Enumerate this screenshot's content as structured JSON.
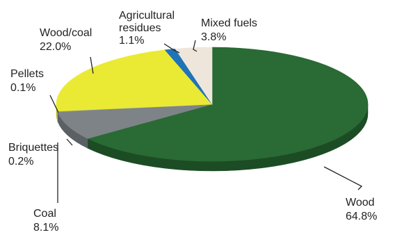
{
  "chart_data": {
    "type": "pie",
    "style": "3d",
    "slices": [
      {
        "name": "Wood",
        "value": 64.8,
        "value_label": "64.8%",
        "color": "#2a6a34",
        "side_color": "#1c4c24"
      },
      {
        "name": "Coal",
        "value": 8.1,
        "value_label": "8.1%",
        "color": "#7e8388",
        "side_color": "#5b6065"
      },
      {
        "name": "Briquettes",
        "value": 0.2,
        "value_label": "0.2%",
        "color": "#8d9196",
        "side_color": "#676b70"
      },
      {
        "name": "Pellets",
        "value": 0.1,
        "value_label": "0.1%",
        "color": "#d9d93a",
        "side_color": "#aaa92a"
      },
      {
        "name": "Wood/coal",
        "value": 22.0,
        "value_label": "22.0%",
        "color": "#eaea34",
        "side_color": "#b9b825"
      },
      {
        "name": "Agricultural residues",
        "value": 1.1,
        "value_label": "1.1%",
        "color": "#1f73b8",
        "side_color": "#175788"
      },
      {
        "name": "Mixed fuels",
        "value": 3.8,
        "value_label": "3.8%",
        "color": "#eee6db",
        "side_color": "#cfc5b8"
      }
    ],
    "labels": [
      {
        "lines": [
          "Wood",
          "64.8%"
        ]
      },
      {
        "lines": [
          "Coal",
          "8.1%"
        ]
      },
      {
        "lines": [
          "Briquettes",
          "0.2%"
        ]
      },
      {
        "lines": [
          "Pellets",
          "0.1%"
        ]
      },
      {
        "lines": [
          "Wood/coal",
          "22.0%"
        ]
      },
      {
        "lines": [
          "Agricultural",
          "residues",
          "1.1%"
        ]
      },
      {
        "lines": [
          "Mixed fuels",
          "3.8%"
        ]
      }
    ]
  }
}
